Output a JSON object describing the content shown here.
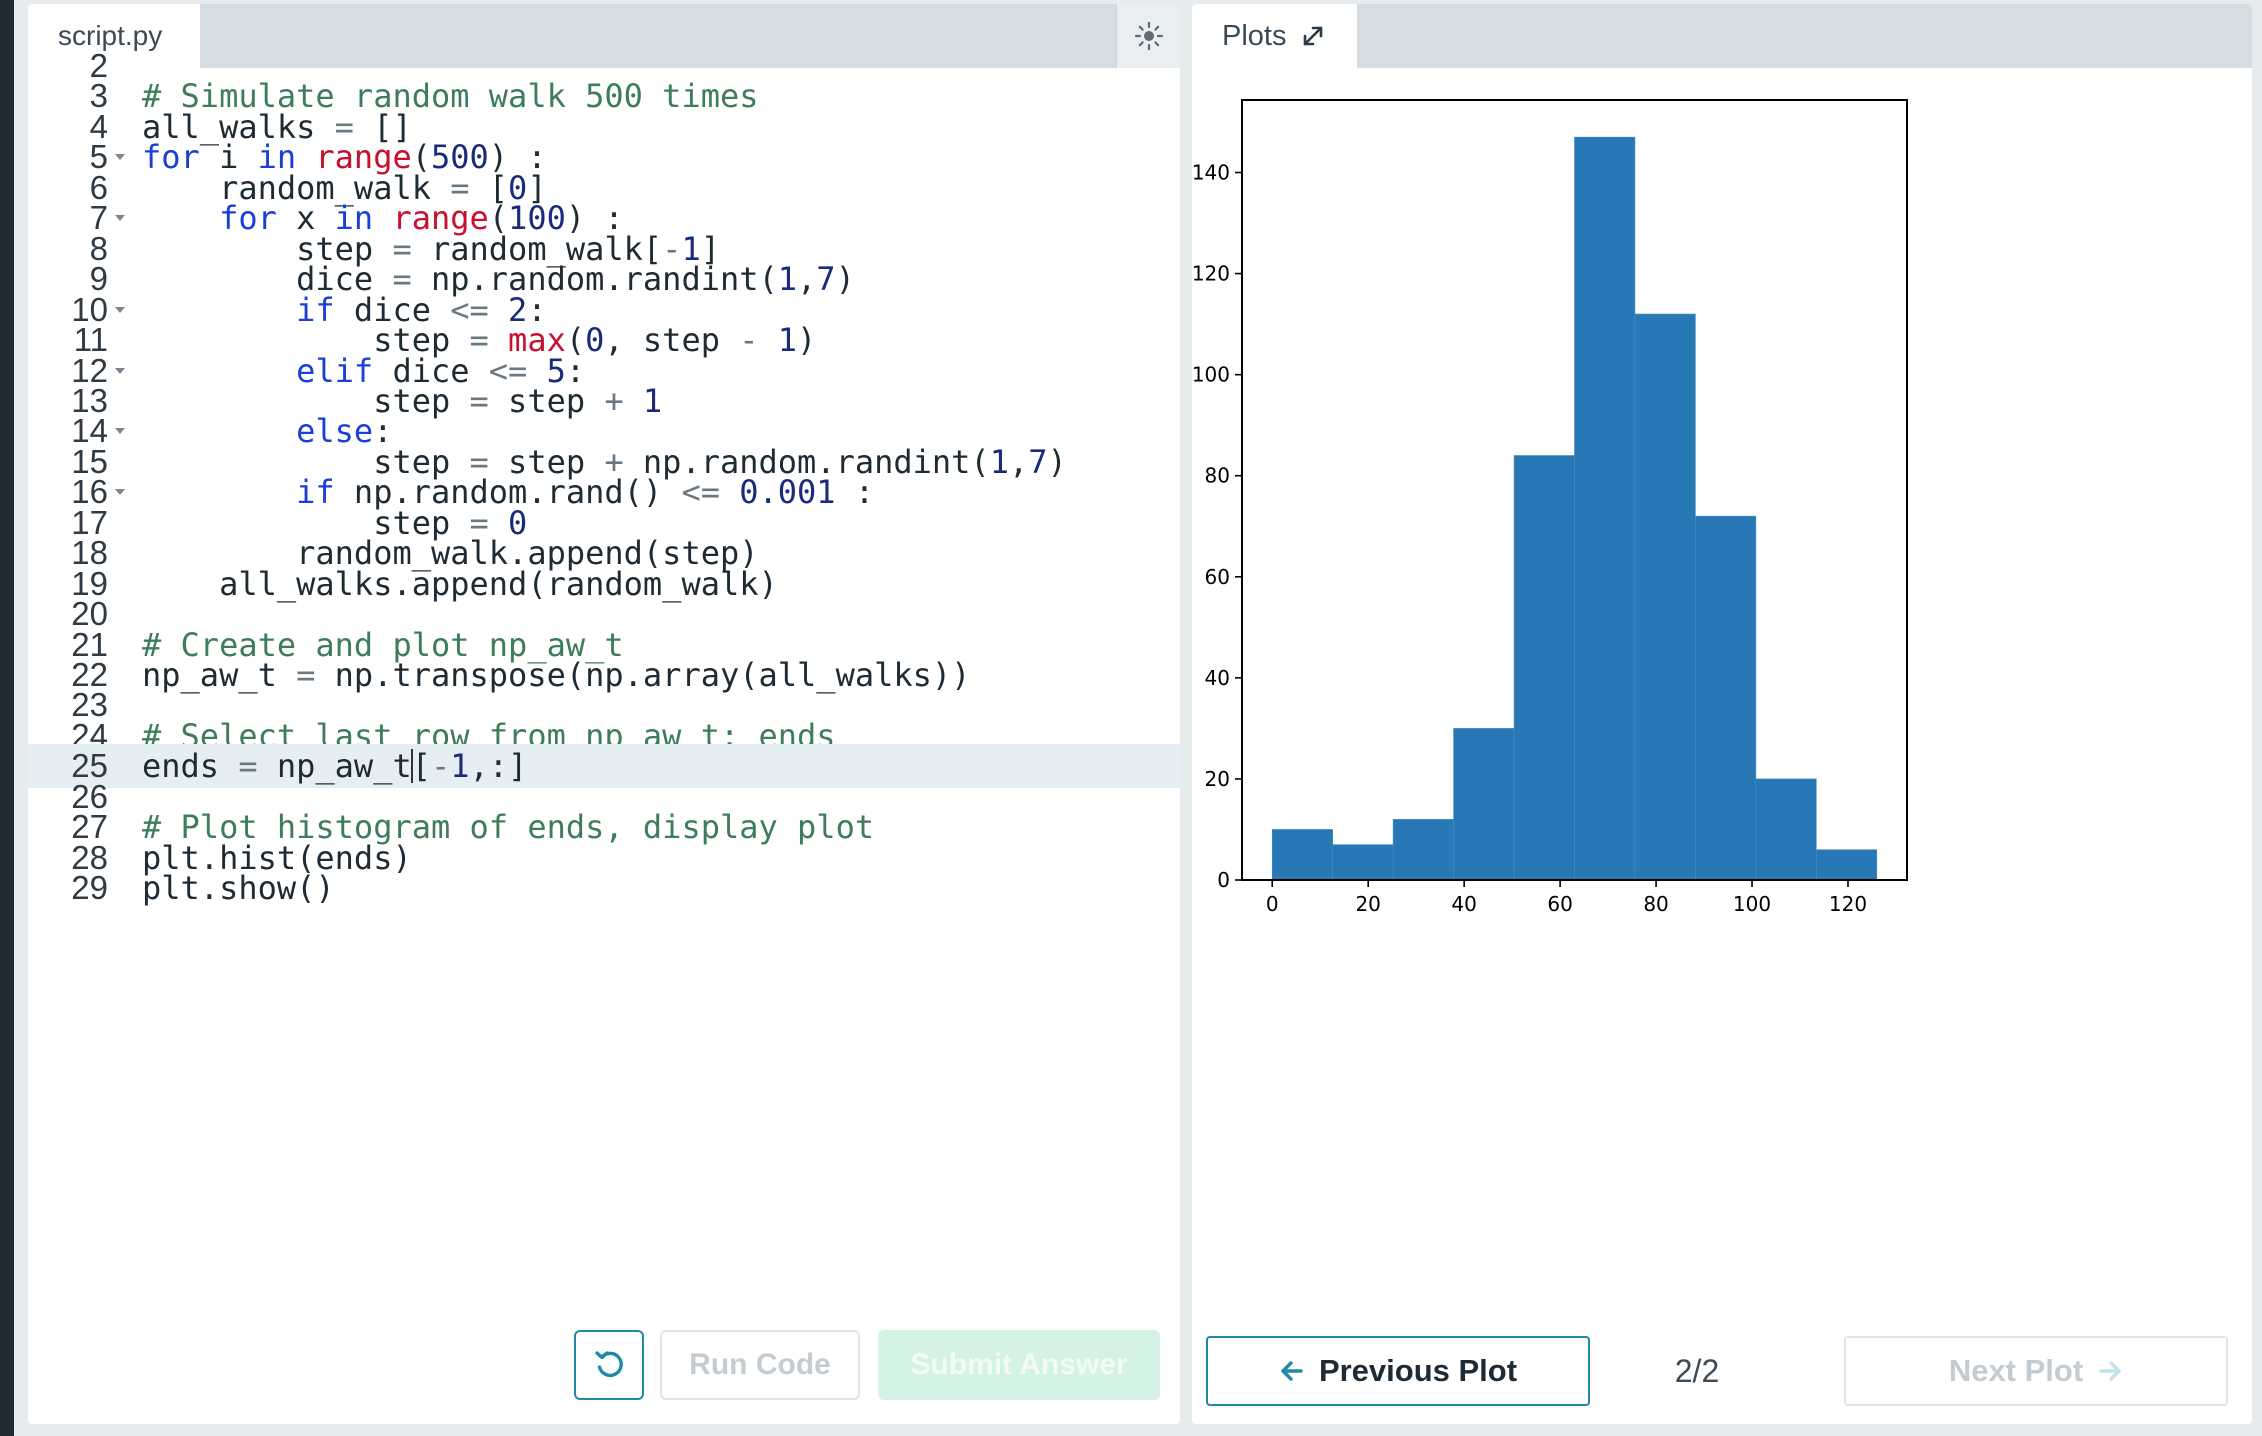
{
  "editor": {
    "tab_label": "script.py",
    "theme_toggle_icon": "sun-icon",
    "lines": [
      {
        "n": "2",
        "text": "",
        "fold": false
      },
      {
        "n": "3",
        "text": "# Simulate random walk 500 times",
        "fold": false
      },
      {
        "n": "4",
        "text": "all_walks = []",
        "fold": false
      },
      {
        "n": "5",
        "text": "for i in range(500) :",
        "fold": true
      },
      {
        "n": "6",
        "text": "    random_walk = [0]",
        "fold": false
      },
      {
        "n": "7",
        "text": "    for x in range(100) :",
        "fold": true
      },
      {
        "n": "8",
        "text": "        step = random_walk[-1]",
        "fold": false
      },
      {
        "n": "9",
        "text": "        dice = np.random.randint(1,7)",
        "fold": false
      },
      {
        "n": "10",
        "text": "        if dice <= 2:",
        "fold": true
      },
      {
        "n": "11",
        "text": "            step = max(0, step - 1)",
        "fold": false
      },
      {
        "n": "12",
        "text": "        elif dice <= 5:",
        "fold": true
      },
      {
        "n": "13",
        "text": "            step = step + 1",
        "fold": false
      },
      {
        "n": "14",
        "text": "        else:",
        "fold": true
      },
      {
        "n": "15",
        "text": "            step = step + np.random.randint(1,7)",
        "fold": false
      },
      {
        "n": "16",
        "text": "        if np.random.rand() <= 0.001 :",
        "fold": true
      },
      {
        "n": "17",
        "text": "            step = 0",
        "fold": false
      },
      {
        "n": "18",
        "text": "        random_walk.append(step)",
        "fold": false
      },
      {
        "n": "19",
        "text": "    all_walks.append(random_walk)",
        "fold": false
      },
      {
        "n": "20",
        "text": "",
        "fold": false
      },
      {
        "n": "21",
        "text": "# Create and plot np_aw_t",
        "fold": false
      },
      {
        "n": "22",
        "text": "np_aw_t = np.transpose(np.array(all_walks))",
        "fold": false
      },
      {
        "n": "23",
        "text": "",
        "fold": false
      },
      {
        "n": "24",
        "text": "# Select last row from np_aw_t: ends",
        "fold": false
      },
      {
        "n": "25",
        "text": "ends = np_aw_t[-1,:]",
        "fold": false,
        "active": true
      },
      {
        "n": "26",
        "text": "",
        "fold": false
      },
      {
        "n": "27",
        "text": "# Plot histogram of ends, display plot",
        "fold": false
      },
      {
        "n": "28",
        "text": "plt.hist(ends)",
        "fold": false
      },
      {
        "n": "29",
        "text": "plt.show()",
        "fold": false
      }
    ],
    "reset_icon": "reset-icon",
    "run_label": "Run Code",
    "submit_label": "Submit Answer"
  },
  "plots": {
    "tab_label": "Plots",
    "expand_icon": "expand-icon",
    "prev_label": "Previous Plot",
    "prev_icon": "arrow-left-icon",
    "page_indicator": "2/2",
    "next_label": "Next Plot",
    "next_icon": "arrow-right-icon"
  },
  "chart_data": {
    "type": "bar",
    "title": "",
    "xlabel": "",
    "ylabel": "",
    "bins": [
      [
        0,
        12.6
      ],
      [
        12.6,
        25.2
      ],
      [
        25.2,
        37.8
      ],
      [
        37.8,
        50.4
      ],
      [
        50.4,
        63
      ],
      [
        63,
        75.6
      ],
      [
        75.6,
        88.2
      ],
      [
        88.2,
        100.8
      ],
      [
        100.8,
        113.4
      ],
      [
        113.4,
        126
      ]
    ],
    "values": [
      10,
      7,
      12,
      30,
      84,
      147,
      112,
      72,
      20,
      6
    ],
    "xlim": [
      -6.3,
      132.3
    ],
    "ylim": [
      0,
      154.35
    ],
    "xticks": [
      0,
      20,
      40,
      60,
      80,
      100,
      120
    ],
    "yticks": [
      0,
      20,
      40,
      60,
      80,
      100,
      120,
      140
    ],
    "bar_color": "#2878b5",
    "grid": false
  },
  "colors": {
    "accent": "#1f8aa8",
    "submit_disabled": "#d4f3e4"
  }
}
